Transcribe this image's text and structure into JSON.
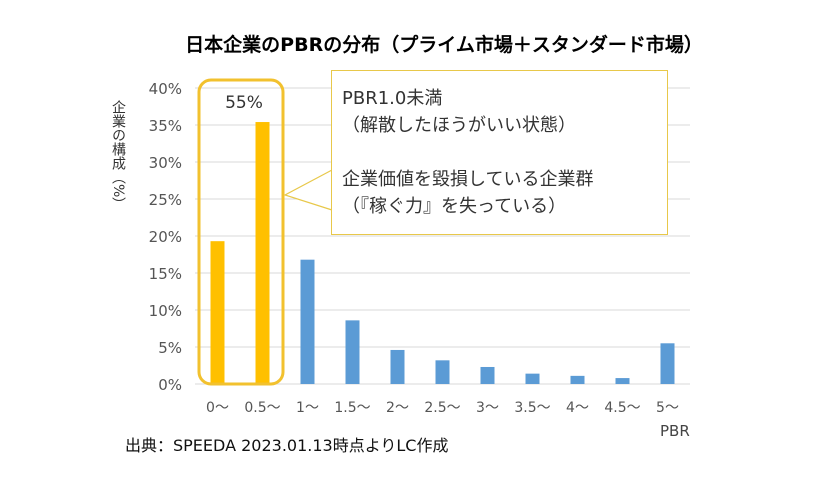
{
  "chart_data": {
    "type": "bar",
    "title": "日本企業のPBRの分布（プライム市場＋スタンダード市場）",
    "ylabel": "企業の構成（%）",
    "xlabel": "PBR",
    "categories": [
      "0～",
      "0.5～",
      "1～",
      "1.5～",
      "2～",
      "2.5～",
      "3～",
      "3.5～",
      "4～",
      "4.5～",
      "5～"
    ],
    "values": [
      19.3,
      35.4,
      16.8,
      8.6,
      4.6,
      3.2,
      2.3,
      1.4,
      1.1,
      0.8,
      5.5
    ],
    "ylim": [
      0,
      40
    ],
    "yticks": [
      "0%",
      "5%",
      "10%",
      "15%",
      "20%",
      "25%",
      "30%",
      "35%",
      "40%"
    ],
    "grid": true,
    "colors": {
      "highlight": "#ffc000",
      "normal": "#5b9bd5",
      "box": "#f2c12e"
    },
    "highlight_label": "55%",
    "callout": [
      "PBR1.0未満",
      "（解散したほうがいい状態）",
      "",
      "企業価値を毀損している企業群",
      "（『稼ぐ力』を失っている）"
    ]
  },
  "source": "出典：SPEEDA 2023.01.13時点よりLC作成"
}
